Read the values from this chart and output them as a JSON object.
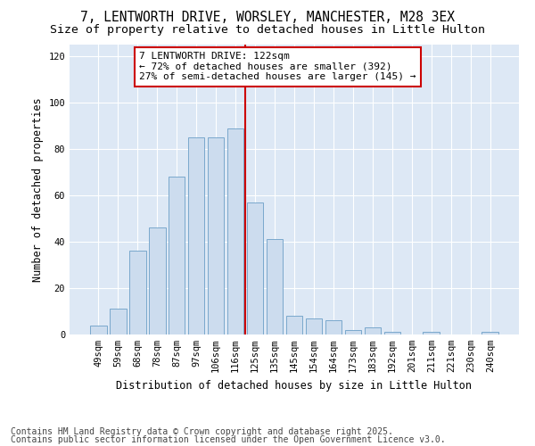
{
  "title_line1": "7, LENTWORTH DRIVE, WORSLEY, MANCHESTER, M28 3EX",
  "title_line2": "Size of property relative to detached houses in Little Hulton",
  "xlabel": "Distribution of detached houses by size in Little Hulton",
  "ylabel": "Number of detached properties",
  "categories": [
    "49sqm",
    "59sqm",
    "68sqm",
    "78sqm",
    "87sqm",
    "97sqm",
    "106sqm",
    "116sqm",
    "125sqm",
    "135sqm",
    "145sqm",
    "154sqm",
    "164sqm",
    "173sqm",
    "183sqm",
    "192sqm",
    "201sqm",
    "211sqm",
    "221sqm",
    "230sqm",
    "240sqm"
  ],
  "values": [
    4,
    11,
    36,
    46,
    68,
    85,
    85,
    89,
    57,
    41,
    8,
    7,
    6,
    2,
    3,
    1,
    0,
    1,
    0,
    0,
    1
  ],
  "bar_color": "#ccdcee",
  "bar_edge_color": "#7aa8cc",
  "vline_color": "#cc0000",
  "vline_x_index": 7.5,
  "annotation_text": "7 LENTWORTH DRIVE: 122sqm\n← 72% of detached houses are smaller (392)\n27% of semi-detached houses are larger (145) →",
  "annotation_box_facecolor": "#ffffff",
  "annotation_box_edgecolor": "#cc0000",
  "ylim": [
    0,
    125
  ],
  "yticks": [
    0,
    20,
    40,
    60,
    80,
    100,
    120
  ],
  "bg_color": "#ffffff",
  "plot_bg_color": "#dde8f5",
  "grid_color": "#ffffff",
  "footer_line1": "Contains HM Land Registry data © Crown copyright and database right 2025.",
  "footer_line2": "Contains public sector information licensed under the Open Government Licence v3.0.",
  "title_fontsize": 10.5,
  "subtitle_fontsize": 9.5,
  "axis_label_fontsize": 8.5,
  "tick_fontsize": 7.5,
  "annotation_fontsize": 8,
  "footer_fontsize": 7
}
